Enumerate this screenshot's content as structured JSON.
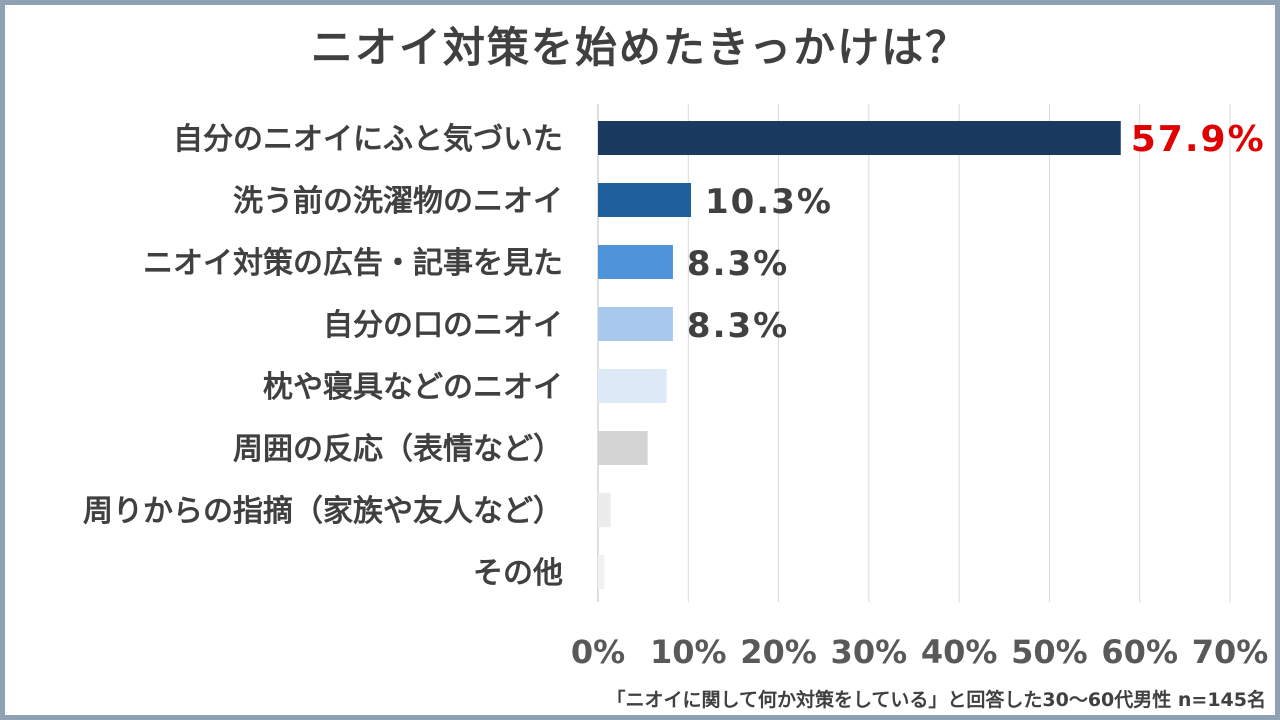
{
  "chart_data": {
    "type": "bar",
    "orientation": "horizontal",
    "title": "ニオイ対策を始めたきっかけは？",
    "categories": [
      "自分のニオイにふと気づいた",
      "洗う前の洗濯物のニオイ",
      "ニオイ対策の広告・記事を見た",
      "自分の口のニオイ",
      "枕や寝具などのニオイ",
      "周囲の反応（表情など）",
      "周りからの指摘（家族や友人など）",
      "その他"
    ],
    "values": [
      57.9,
      10.3,
      8.3,
      8.3,
      7.6,
      5.5,
      1.4,
      0.7
    ],
    "data_labels": [
      "57.9%",
      "10.3%",
      "8.3%",
      "8.3%",
      "",
      "",
      "",
      ""
    ],
    "bar_colors": [
      "#1b3a5f",
      "#1f5f9e",
      "#4f94d9",
      "#a9caee",
      "#dde9f6",
      "#d4d4d4",
      "#ececec",
      "#f1f1f1"
    ],
    "label_colors": [
      "#e00000",
      "#404040",
      "#404040",
      "#404040",
      "#404040",
      "#404040",
      "#404040",
      "#404040"
    ],
    "xlim": [
      0,
      70
    ],
    "xticks": [
      0,
      10,
      20,
      30,
      40,
      50,
      60,
      70
    ],
    "xtick_labels": [
      "0%",
      "10%",
      "20%",
      "30%",
      "40%",
      "50%",
      "60%",
      "70%"
    ],
    "grid": true,
    "legend": "none"
  },
  "footnote": "「ニオイに関して何か対策をしている」と回答した30～60代男性 n=145名"
}
